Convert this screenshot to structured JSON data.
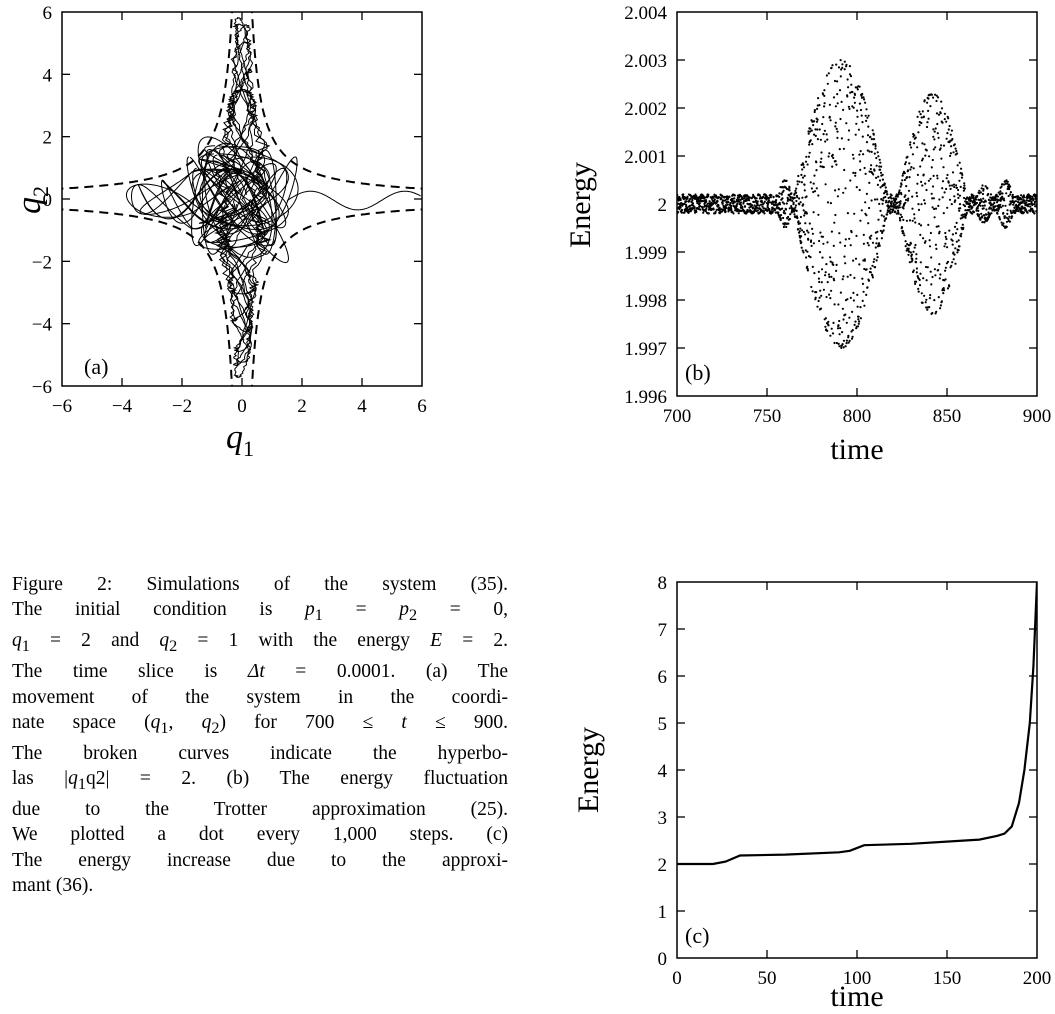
{
  "figure": {
    "caption": {
      "lines": [
        "Figure 2: Simulations of the system (35).",
        "The initial condition is p1 = p2 = 0,",
        "q1 = 2 and q2 = 1 with the energy E = 2.",
        "The time slice is Δt = 0.0001. (a) The",
        "movement of the system in the coordi-",
        "nate space (q1, q2) for 700 ≤ t ≤ 900.",
        "The broken curves indicate the hyperbo-",
        "las |q1q2| = 2. (b) The energy fluctuation",
        "due to the Trotter approximation (25).",
        "We plotted a dot every 1,000 steps. (c)",
        "The energy increase due to the approxi-",
        "mant (36)."
      ]
    }
  },
  "chart_data": [
    {
      "panel_label": "(a)",
      "type": "line",
      "xlabel": "q1",
      "ylabel": "q2",
      "xlim": [
        -6,
        6
      ],
      "ylim": [
        -6,
        6
      ],
      "xticks": [
        "−6",
        "−4",
        "−2",
        "0",
        "2",
        "4",
        "6"
      ],
      "yticks": [
        "−6",
        "−4",
        "−2",
        "0",
        "2",
        "4",
        "6"
      ],
      "series": [
        {
          "style": "dashed",
          "equation": "|q1 q2| = 2"
        },
        {
          "style": "solid",
          "trajectory": "chaotic orbit 700 ≤ t ≤ 900"
        }
      ]
    },
    {
      "panel_label": "(b)",
      "type": "scatter",
      "xlabel": "time",
      "ylabel": "Energy",
      "xlim": [
        700,
        900
      ],
      "ylim": [
        1.996,
        2.004
      ],
      "xticks": [
        "700",
        "750",
        "800",
        "850",
        "900"
      ],
      "yticks": [
        "1.996",
        "1.997",
        "1.998",
        "1.999",
        "2",
        "2.001",
        "2.002",
        "2.003",
        "2.004"
      ],
      "envelopes": [
        {
          "t_start": 755,
          "t_end": 765,
          "amp": 0.0005
        },
        {
          "t_start": 764,
          "t_end": 818,
          "amp": 0.003
        },
        {
          "t_start": 822,
          "t_end": 862,
          "amp": 0.0023
        },
        {
          "t_start": 865,
          "t_end": 876,
          "amp": 0.0004
        },
        {
          "t_start": 877,
          "t_end": 888,
          "amp": 0.0005
        }
      ]
    },
    {
      "panel_label": "(c)",
      "type": "line",
      "xlabel": "time",
      "ylabel": "Energy",
      "xlim": [
        0,
        200
      ],
      "ylim": [
        0,
        8
      ],
      "xticks": [
        "0",
        "50",
        "100",
        "150",
        "200"
      ],
      "yticks": [
        "0",
        "1",
        "2",
        "3",
        "4",
        "5",
        "6",
        "7",
        "8"
      ],
      "x": [
        0,
        20,
        27,
        35,
        60,
        90,
        96,
        104,
        130,
        160,
        168,
        178,
        182,
        186,
        190,
        193,
        196,
        198,
        200
      ],
      "y": [
        2.0,
        2.0,
        2.05,
        2.18,
        2.2,
        2.25,
        2.28,
        2.4,
        2.43,
        2.5,
        2.52,
        2.6,
        2.65,
        2.8,
        3.3,
        4.0,
        5.0,
        6.2,
        8.0
      ]
    }
  ]
}
